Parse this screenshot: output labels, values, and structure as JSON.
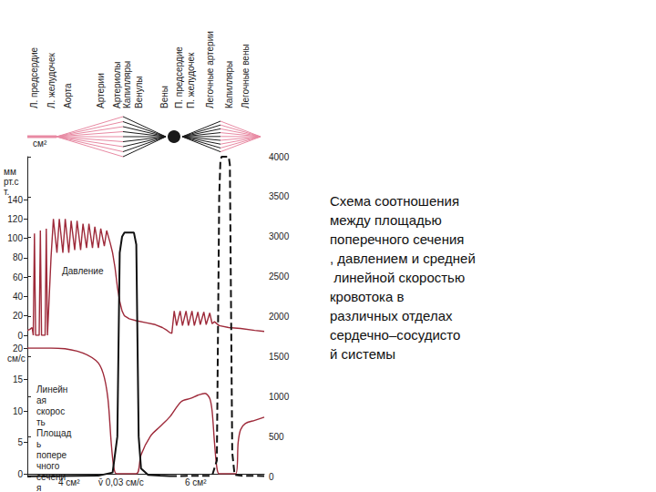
{
  "chart_data": [
    {
      "type": "line",
      "title": "Схема соотношения между площадью поперечного сечения, давлением и средней линейной скоростью кровотока в различных отделах сердечно–сосудистой системы",
      "ylabel": "мм рт.ст.",
      "xlim": [
        0,
        100
      ],
      "xticks": [
        {
          "value": 3,
          "label": "Л. предсердие"
        },
        {
          "value": 10,
          "label": "Л. желудочек"
        },
        {
          "value": 17,
          "label": "Аорта"
        },
        {
          "value": 31,
          "label": "Артерии"
        },
        {
          "value": 38,
          "label": "Артериолы"
        },
        {
          "value": 42,
          "label": "Капилляры"
        },
        {
          "value": 47,
          "label": "Венулы"
        },
        {
          "value": 58,
          "label": "Вены"
        },
        {
          "value": 64,
          "label": "П. предсердие"
        },
        {
          "value": 69,
          "label": "П. желудочек"
        },
        {
          "value": 77,
          "label": "Легочные артерии"
        },
        {
          "value": 85,
          "label": "Капилляры"
        },
        {
          "value": 92,
          "label": "Легочные вены"
        }
      ],
      "ylim": [
        0,
        140
      ],
      "yticks": [
        0,
        20,
        40,
        60,
        80,
        100,
        120,
        140
      ],
      "grid": false,
      "series": [
        {
          "name": "Давление",
          "color": "#9e2a3a",
          "x": [
            0,
            1,
            2,
            2.5,
            3,
            3.5,
            5,
            5.5,
            6,
            7.5,
            8,
            8.5,
            10,
            11,
            12.5,
            13.5,
            15,
            16,
            17.5,
            18.5,
            20,
            21,
            22.5,
            23.5,
            25,
            26,
            27.5,
            28.5,
            30,
            31,
            32.5,
            33.5,
            35,
            36,
            37,
            38,
            39,
            40,
            41,
            43,
            46,
            50,
            54,
            57,
            59,
            60,
            61,
            62,
            63,
            64.5,
            65.5,
            67,
            68,
            69.5,
            70.5,
            72,
            73,
            74.5,
            75.5,
            77,
            78,
            79,
            81,
            85,
            90,
            96,
            100
          ],
          "values": [
            5,
            6,
            8,
            0,
            105,
            0,
            0,
            108,
            0,
            0,
            110,
            0,
            80,
            120,
            85,
            120,
            85,
            120,
            85,
            118,
            88,
            118,
            88,
            115,
            90,
            115,
            90,
            112,
            90,
            110,
            92,
            108,
            95,
            85,
            70,
            50,
            35,
            25,
            20,
            17,
            15,
            13,
            11,
            8,
            5,
            3,
            2,
            25,
            10,
            25,
            10,
            25,
            10,
            25,
            10,
            24,
            11,
            24,
            11,
            23,
            12,
            14,
            10,
            8,
            7,
            5,
            4
          ]
        }
      ]
    },
    {
      "type": "line",
      "ylabel": "см/с",
      "y2label": "см²",
      "xlim": [
        0,
        100
      ],
      "ylim": [
        0,
        20
      ],
      "yticks": [
        0,
        5,
        10,
        15,
        20
      ],
      "y2lim": [
        0,
        4000
      ],
      "y2ticks": [
        0,
        500,
        1000,
        1500,
        2000,
        2500,
        3000,
        3500,
        4000
      ],
      "grid": false,
      "annotations": [
        "4 см²",
        "v̄ 0,03 см/с",
        "6 см²"
      ],
      "series": [
        {
          "name": "Линейная скорость",
          "color": "#9e2a3a",
          "x": [
            0,
            10,
            21,
            29,
            32,
            34,
            35.4,
            36.5,
            37.7,
            46,
            48,
            52,
            56,
            60,
            65,
            69,
            72,
            75,
            77,
            78,
            79,
            80,
            81,
            88,
            89,
            90,
            92,
            96,
            100
          ],
          "values": [
            20,
            20,
            19.5,
            18,
            16,
            12,
            5,
            1,
            0,
            0,
            3,
            6,
            7.5,
            9,
            11.5,
            12,
            12.5,
            12.8,
            12,
            10,
            5,
            1,
            0,
            0,
            5,
            7,
            8,
            8.5,
            9
          ]
        },
        {
          "name": "Площадь поперечного сечения",
          "color": "#111111",
          "axis": "y2",
          "line_style": "solid",
          "x": [
            0,
            30,
            36,
            38,
            39,
            40,
            41,
            45,
            46,
            47,
            48,
            51,
            56,
            60
          ],
          "values": [
            4,
            10,
            50,
            500,
            2800,
            3000,
            3050,
            3050,
            2900,
            500,
            100,
            20,
            10,
            6
          ]
        },
        {
          "color": "#111111",
          "axis": "y2",
          "line_style": "dashed",
          "x": [
            60,
            78,
            80,
            81,
            81.5,
            82,
            85,
            85.5,
            86.5,
            87.5,
            90,
            100
          ],
          "values": [
            6,
            10,
            200,
            3500,
            3950,
            4000,
            4000,
            3900,
            300,
            20,
            10,
            6
          ]
        }
      ]
    }
  ]
}
